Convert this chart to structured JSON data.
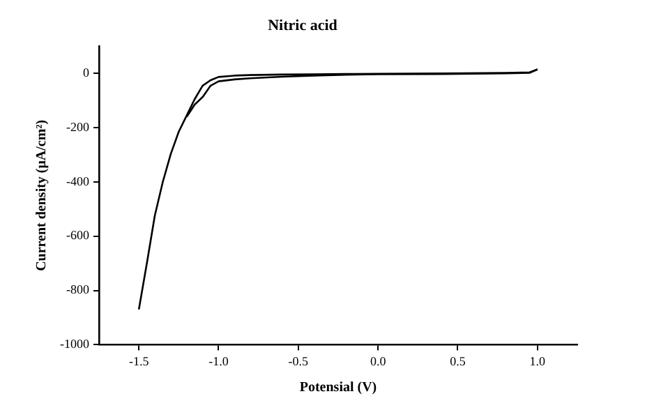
{
  "chart_data": {
    "type": "line",
    "title": "Nitric acid",
    "xlabel": "Potensial (V)",
    "ylabel": "Current density (μA/cm²)",
    "xlim": [
      -1.75,
      1.25
    ],
    "xticks": [
      {
        "value": -1.5,
        "label": "-1.5"
      },
      {
        "value": -1.0,
        "label": "-1.0"
      },
      {
        "value": -0.5,
        "label": "-0.5"
      },
      {
        "value": 0,
        "label": "0.0"
      },
      {
        "value": 0.5,
        "label": "0.5"
      },
      {
        "value": 1.0,
        "label": "1.0"
      }
    ],
    "ylim": [
      -1000,
      100
    ],
    "yticks": [
      -1000,
      -800,
      -600,
      -400,
      -200,
      0
    ],
    "grid": false,
    "legend": false,
    "marker": "none",
    "line_style": "solid",
    "series": [
      {
        "color": "#000000",
        "x": [
          -1.5,
          -1.45,
          -1.4,
          -1.35,
          -1.3,
          -1.25,
          -1.2,
          -1.15,
          -1.1,
          -1.05,
          -1.0,
          -0.9,
          -0.8,
          -0.6,
          -0.4,
          -0.2,
          0,
          0.4,
          0.8,
          0.95,
          1.0
        ],
        "values": [
          -870,
          -700,
          -524,
          -400,
          -297,
          -215,
          -155,
          -95,
          -45,
          -25,
          -13,
          -8,
          -6,
          -4,
          -3,
          -2,
          -1,
          0,
          2,
          4,
          15
        ]
      },
      {
        "color": "#000000",
        "x": [
          -1.2,
          -1.15,
          -1.1,
          -1.05,
          -1.0,
          -0.9,
          -0.8,
          -0.6,
          -0.4,
          -0.2,
          0,
          0.4,
          0.8,
          0.95,
          1.0
        ],
        "values": [
          -160,
          -115,
          -87,
          -45,
          -29,
          -22,
          -18,
          -12,
          -8,
          -5,
          -3,
          -2,
          0,
          2,
          15
        ]
      }
    ]
  }
}
